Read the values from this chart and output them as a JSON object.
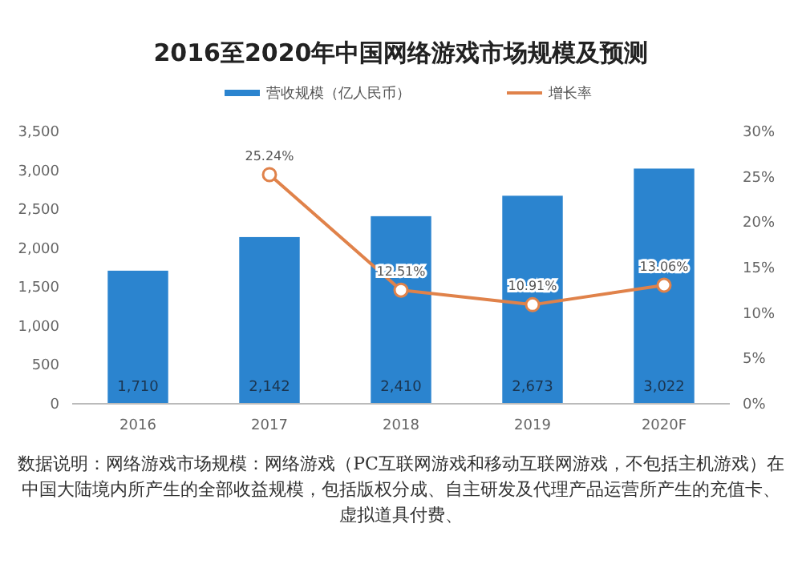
{
  "chart_data": {
    "type": "bar",
    "title": "2016至2020年中国网络游戏市场规模及预测",
    "categories": [
      "2016",
      "2017",
      "2018",
      "2019",
      "2020F"
    ],
    "series": [
      {
        "name": "营收规模（亿人民币）",
        "color": "#2b84cf",
        "values": [
          1710,
          2142,
          2410,
          2673,
          3022
        ],
        "value_labels": [
          "1,710",
          "2,142",
          "2,410",
          "2,673",
          "3,022"
        ]
      },
      {
        "name": "增长率",
        "type": "line",
        "axis": "y2",
        "color": "#e0824a",
        "marker": "circle",
        "values": [
          null,
          25.24,
          12.51,
          10.91,
          13.06
        ],
        "value_labels": [
          null,
          "25.24%",
          "12.51%",
          "10.91%",
          "13.06%"
        ]
      }
    ],
    "ylim": [
      0,
      3500
    ],
    "yticks": [
      {
        "value": 0,
        "label": "0"
      },
      {
        "value": 500,
        "label": "500"
      },
      {
        "value": 1000,
        "label": "1,000"
      },
      {
        "value": 1500,
        "label": "1,500"
      },
      {
        "value": 2000,
        "label": "2,000"
      },
      {
        "value": 2500,
        "label": "2,500"
      },
      {
        "value": 3000,
        "label": "3,000"
      },
      {
        "value": 3500,
        "label": "3,500"
      }
    ],
    "y2lim": [
      0,
      30
    ],
    "y2ticks": [
      {
        "value": 0,
        "label": "0%"
      },
      {
        "value": 5,
        "label": "5%"
      },
      {
        "value": 10,
        "label": "10%"
      },
      {
        "value": 15,
        "label": "15%"
      },
      {
        "value": 20,
        "label": "20%"
      },
      {
        "value": 25,
        "label": "25%"
      },
      {
        "value": 30,
        "label": "30%"
      }
    ],
    "legend": "top",
    "grid": false,
    "annotations": [
      "数据说明：网络游戏市场规模：网络游戏（PC互联网游戏和移动互联网游戏，不包括主机游戏）在中国大陆境内所产生的全部收益规模，包括版权分成、自主研发及代理产品运营所产生的充值卡、虚拟道具付费、"
    ]
  }
}
